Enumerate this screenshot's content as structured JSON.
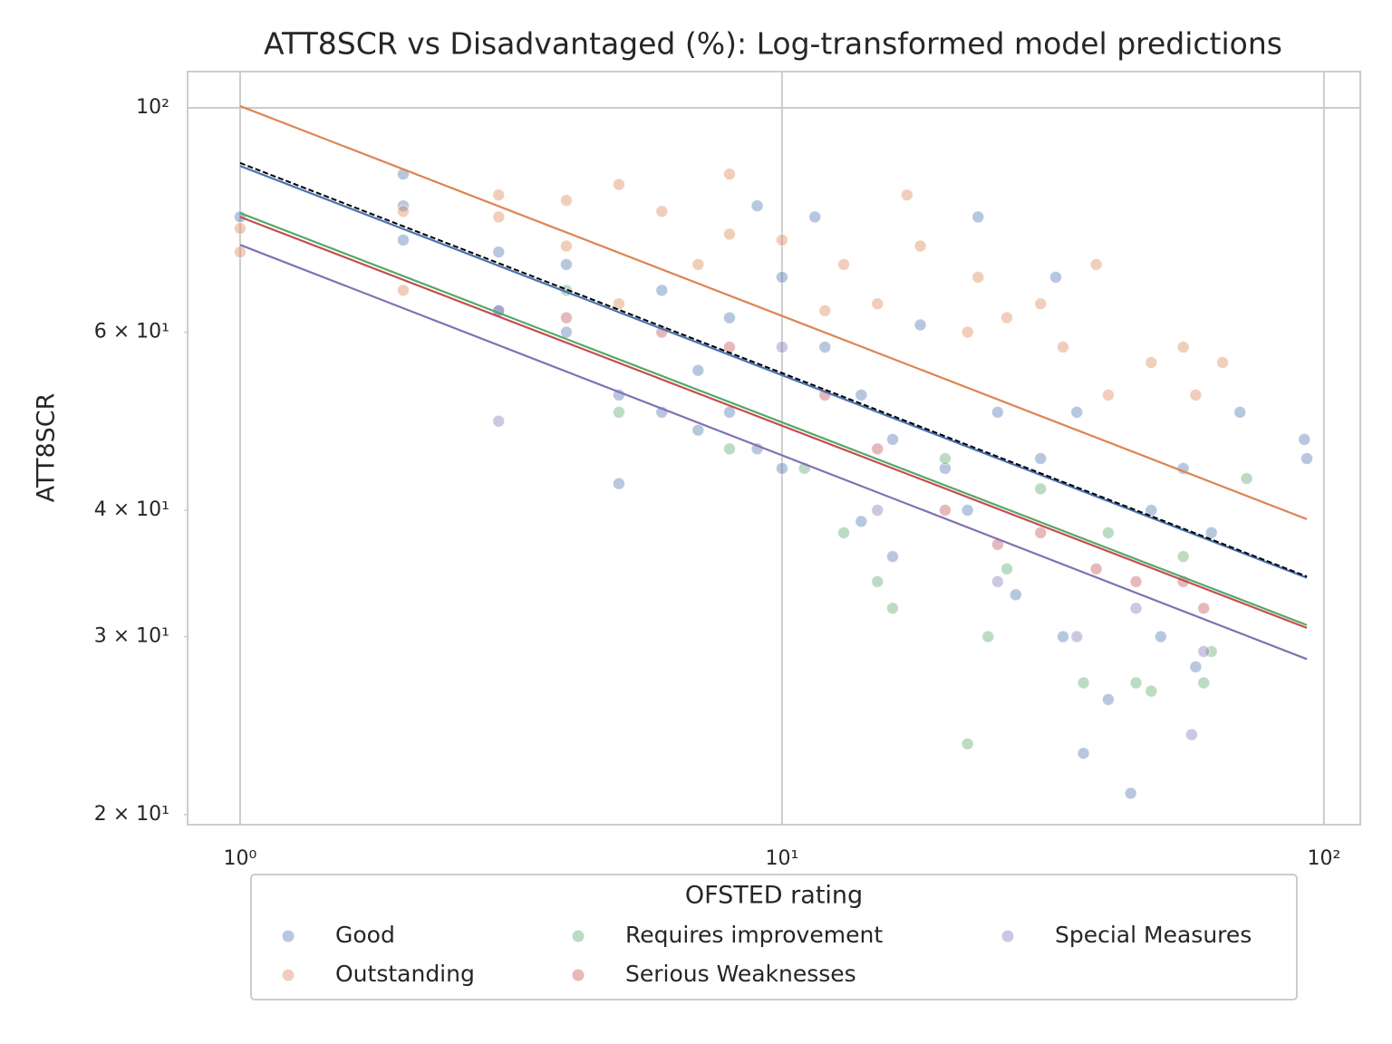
{
  "chart_data": {
    "type": "scatter",
    "title": "ATT8SCR vs Disadvantaged (%): Log-transformed model predictions",
    "ylabel": "ATT8SCR",
    "xscale": "log",
    "yscale": "log",
    "xlim": [
      0.8,
      116.7
    ],
    "ylim": [
      19.55,
      108.6
    ],
    "xticks": [
      {
        "value": 1,
        "label": "10⁰"
      },
      {
        "value": 10,
        "label": "10¹"
      },
      {
        "value": 100,
        "label": "10²"
      }
    ],
    "yticks": [
      {
        "value": 100,
        "label": "10²"
      }
    ],
    "y_minor_ticks": [
      {
        "value": 60,
        "label": "6 × 10¹"
      },
      {
        "value": 40,
        "label": "4 × 10¹"
      },
      {
        "value": 30,
        "label": "3 × 10¹"
      },
      {
        "value": 20,
        "label": "2 × 10¹"
      }
    ],
    "grid": true,
    "legend_title": "OFSTED rating",
    "legend": "lower center outside",
    "series": [
      {
        "name": "Good",
        "type": "scatter",
        "color": "#4c72b0",
        "x": [
          1,
          2,
          2,
          2,
          3,
          3,
          4,
          4,
          5,
          5,
          6,
          6,
          7,
          7,
          8,
          8,
          9,
          9,
          10,
          10,
          11.5,
          12,
          14,
          14,
          16,
          16,
          18,
          20,
          22,
          23,
          25,
          27,
          30,
          32,
          33,
          35,
          36,
          40,
          44,
          48,
          50,
          55,
          58,
          62,
          70,
          92,
          93
        ],
        "values": [
          78,
          86,
          80,
          74,
          72,
          63,
          70,
          60,
          52,
          42.5,
          66,
          50,
          55,
          48,
          62,
          50,
          80,
          46,
          68,
          44,
          78,
          58,
          52,
          39,
          47,
          36,
          61,
          44,
          40,
          78,
          50,
          33,
          45,
          68,
          30,
          50,
          23,
          26,
          21,
          40,
          30,
          44,
          28,
          38,
          50,
          47,
          45
        ]
      },
      {
        "name": "Outstanding",
        "type": "scatter",
        "color": "#dd8452",
        "x": [
          1,
          1,
          2,
          2,
          3,
          3,
          4,
          4,
          5,
          5,
          6,
          7,
          8,
          8,
          10,
          12,
          13,
          15,
          17,
          18,
          22,
          23,
          26,
          30,
          33,
          38,
          40,
          48,
          55,
          58,
          65
        ],
        "values": [
          76,
          72,
          79,
          66,
          82,
          78,
          81,
          73,
          84,
          64,
          79,
          70,
          86,
          75,
          74,
          63,
          70,
          64,
          82,
          73,
          60,
          68,
          62,
          64,
          58,
          70,
          52,
          56,
          58,
          52,
          56
        ]
      },
      {
        "name": "Requires improvement",
        "type": "scatter",
        "color": "#55a868",
        "x": [
          4,
          5,
          8,
          11,
          13,
          15,
          16,
          20,
          22,
          24,
          26,
          30,
          36,
          40,
          45,
          48,
          55,
          60,
          62,
          72
        ],
        "values": [
          66,
          50,
          46,
          44,
          38,
          34,
          32,
          45,
          23.5,
          30,
          35,
          42,
          27,
          38,
          27,
          26.5,
          36,
          27,
          29,
          43
        ]
      },
      {
        "name": "Serious Weaknesses",
        "type": "scatter",
        "color": "#c44e52",
        "x": [
          4,
          6,
          8,
          12,
          15,
          20,
          25,
          30,
          38,
          45,
          55,
          60
        ],
        "values": [
          62,
          60,
          58,
          52,
          46,
          40,
          37,
          38,
          35,
          34,
          34,
          32
        ]
      },
      {
        "name": "Special Measures",
        "type": "scatter",
        "color": "#8172b3",
        "x": [
          3,
          3,
          10,
          15,
          25,
          35,
          45,
          57,
          60
        ],
        "values": [
          49,
          63,
          58,
          40,
          34,
          30,
          32,
          24,
          29
        ]
      },
      {
        "type": "line",
        "color": "#4c72b0",
        "x": [
          1,
          93
        ],
        "values": [
          87.6,
          34.3
        ]
      },
      {
        "type": "line",
        "color": "#dd8452",
        "x": [
          1,
          93
        ],
        "values": [
          100.4,
          39.2
        ]
      },
      {
        "type": "line",
        "color": "#55a868",
        "x": [
          1,
          93
        ],
        "values": [
          78.7,
          30.8
        ]
      },
      {
        "type": "line",
        "color": "#c44e52",
        "x": [
          1,
          93
        ],
        "values": [
          78.0,
          30.6
        ]
      },
      {
        "type": "line",
        "color": "#8172b3",
        "x": [
          1,
          93
        ],
        "values": [
          73.2,
          28.5
        ]
      },
      {
        "type": "line",
        "color": "#000000",
        "dash": true,
        "x": [
          1,
          93
        ],
        "values": [
          88.2,
          34.4
        ]
      }
    ]
  }
}
